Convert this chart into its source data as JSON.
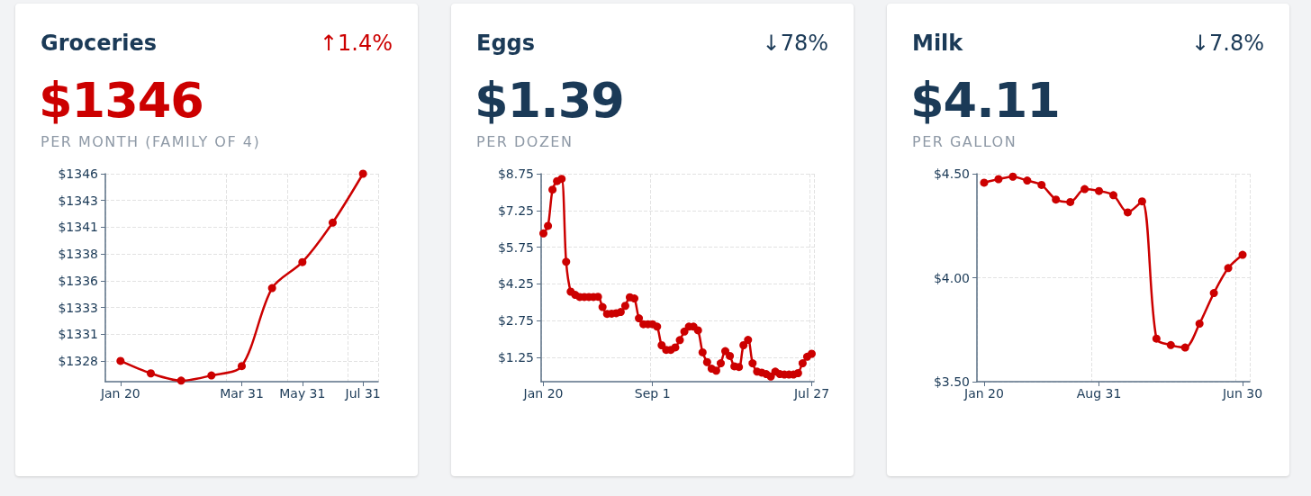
{
  "chart_data": [
    {
      "type": "line",
      "title": "Groceries",
      "subtitle": "PER MONTH (FAMILY OF 4)",
      "annotations": [
        "↑1.4%",
        "$1346"
      ],
      "categories": [
        "Jan 20",
        null,
        null,
        null,
        "Mar 31",
        null,
        "May 31",
        null,
        "Jul 31"
      ],
      "series": [
        {
          "color": "#cc0000",
          "values": [
            1328,
            1326.8,
            1326.1,
            1326.6,
            1327.5,
            1335,
            1337.5,
            1341.3,
            1346
          ]
        }
      ],
      "ylim": [
        1326,
        1346
      ],
      "yticks": [
        {
          "value": 1328,
          "label": "$1328"
        },
        {
          "value": 1330.57,
          "label": "$1331"
        },
        {
          "value": 1333.14,
          "label": "$1333"
        },
        {
          "value": 1335.71,
          "label": "$1336"
        },
        {
          "value": 1338.29,
          "label": "$1338"
        },
        {
          "value": 1340.86,
          "label": "$1341"
        },
        {
          "value": 1343.43,
          "label": "$1343"
        },
        {
          "value": 1346,
          "label": "$1346"
        }
      ],
      "grid": true,
      "marker": "circle"
    },
    {
      "type": "line",
      "title": "Eggs",
      "subtitle": "PER DOZEN",
      "annotations": [
        "↓78%",
        "$1.39"
      ],
      "categories": [
        "Jan 20",
        null,
        null,
        null,
        null,
        null,
        null,
        null,
        null,
        null,
        null,
        null,
        null,
        null,
        null,
        null,
        null,
        null,
        null,
        null,
        null,
        null,
        null,
        null,
        "Sep 1",
        null,
        null,
        null,
        null,
        null,
        null,
        null,
        null,
        null,
        null,
        null,
        null,
        null,
        null,
        null,
        null,
        null,
        null,
        null,
        null,
        null,
        null,
        null,
        null,
        null,
        null,
        null,
        null,
        null,
        null,
        null,
        null,
        null,
        null,
        "Jul 27"
      ],
      "series": [
        {
          "color": "#cc0000",
          "values": [
            6.31,
            6.62,
            8.1,
            8.45,
            8.54,
            5.15,
            3.93,
            3.8,
            3.71,
            3.71,
            3.71,
            3.71,
            3.72,
            3.3,
            3.02,
            3.03,
            3.05,
            3.1,
            3.35,
            3.7,
            3.65,
            2.84,
            2.6,
            2.6,
            2.6,
            2.5,
            1.74,
            1.55,
            1.55,
            1.65,
            1.95,
            2.3,
            2.5,
            2.5,
            2.35,
            1.45,
            1.05,
            0.78,
            0.7,
            1.0,
            1.5,
            1.3,
            0.88,
            0.85,
            1.74,
            1.96,
            1.0,
            0.66,
            0.62,
            0.56,
            0.46,
            0.66,
            0.56,
            0.54,
            0.54,
            0.54,
            0.6,
            1.0,
            1.27,
            1.39
          ]
        }
      ],
      "ylim": [
        0.25,
        8.75
      ],
      "yticks": [
        {
          "value": 1.25,
          "label": "$1.25"
        },
        {
          "value": 2.75,
          "label": "$2.75"
        },
        {
          "value": 4.25,
          "label": "$4.25"
        },
        {
          "value": 5.75,
          "label": "$5.75"
        },
        {
          "value": 7.25,
          "label": "$7.25"
        },
        {
          "value": 8.75,
          "label": "$8.75"
        }
      ],
      "grid": true,
      "marker": "circle"
    },
    {
      "type": "line",
      "title": "Milk",
      "subtitle": "PER GALLON",
      "annotations": [
        "↓7.8%",
        "$4.11"
      ],
      "categories": [
        "Jan 20",
        null,
        null,
        null,
        null,
        null,
        null,
        null,
        "Aug 31",
        null,
        null,
        null,
        null,
        null,
        null,
        null,
        null,
        null,
        "Jun 30"
      ],
      "series": [
        {
          "color": "#cc0000",
          "values": [
            4.457,
            4.474,
            4.486,
            4.467,
            4.446,
            4.376,
            4.364,
            4.426,
            4.417,
            4.397,
            4.314,
            4.367,
            3.707,
            3.676,
            3.664,
            3.779,
            3.926,
            4.046,
            4.11
          ]
        }
      ],
      "ylim": [
        3.5,
        4.5
      ],
      "yticks": [
        {
          "value": 3.5,
          "label": "$3.50"
        },
        {
          "value": 4.0,
          "label": "$4.00"
        },
        {
          "value": 4.5,
          "label": "$4.50"
        }
      ],
      "grid": true,
      "marker": "circle"
    }
  ]
}
